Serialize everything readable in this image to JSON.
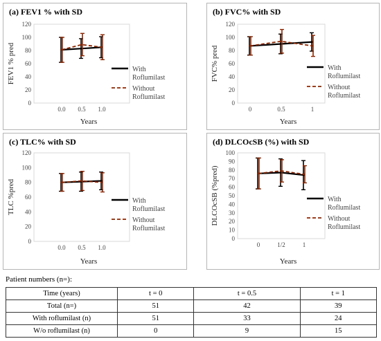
{
  "chart_data": [
    {
      "type": "line",
      "title": "(a) FEV1 % with SD",
      "xlabel": "Years",
      "ylabel": "FEV1 % pred",
      "x_tick_labels": [
        "0.0",
        "0.5",
        "1.0"
      ],
      "ylim": [
        0,
        120
      ],
      "y_ticks": [
        "0",
        "20",
        "40",
        "60",
        "80",
        "100",
        "120"
      ],
      "series": [
        {
          "name": "With Roflumilast",
          "color": "#000000",
          "dashed": false,
          "values": [
            81,
            83,
            85
          ],
          "sd": [
            19,
            15,
            16
          ]
        },
        {
          "name": "Without Roflumilast",
          "color": "#8b2500",
          "dashed": true,
          "values": [
            81,
            89,
            85
          ],
          "sd": [
            19,
            17,
            19
          ]
        }
      ]
    },
    {
      "type": "line",
      "title": "(b) FVC% with SD",
      "xlabel": "Years",
      "ylabel": "FVC% pred",
      "x_tick_labels": [
        "0",
        "0.5",
        "1"
      ],
      "ylim": [
        0,
        120
      ],
      "y_ticks": [
        "0",
        "20",
        "40",
        "60",
        "80",
        "100",
        "120"
      ],
      "series": [
        {
          "name": "With Roflumilast",
          "color": "#000000",
          "dashed": false,
          "values": [
            87,
            90,
            93
          ],
          "sd": [
            14,
            15,
            14
          ]
        },
        {
          "name": "Without Roflumilast",
          "color": "#8b2500",
          "dashed": true,
          "values": [
            87,
            94,
            87
          ],
          "sd": [
            14,
            18,
            16
          ]
        }
      ]
    },
    {
      "type": "line",
      "title": "(c) TLC% with SD",
      "xlabel": "Years",
      "ylabel": "TLC %pred",
      "x_tick_labels": [
        "0.0",
        "0.5",
        "1.0"
      ],
      "ylim": [
        0,
        120
      ],
      "y_ticks": [
        "0",
        "20",
        "40",
        "60",
        "80",
        "100",
        "120"
      ],
      "series": [
        {
          "name": "With Roflumilast",
          "color": "#000000",
          "dashed": false,
          "values": [
            80,
            81,
            82
          ],
          "sd": [
            12,
            13,
            12
          ]
        },
        {
          "name": "Without Roflumilast",
          "color": "#8b2500",
          "dashed": true,
          "values": [
            80,
            82,
            80
          ],
          "sd": [
            12,
            13,
            13
          ]
        }
      ]
    },
    {
      "type": "line",
      "title": "(d) DLCOcSB (%) with SD",
      "xlabel": "Years",
      "ylabel": "DLCOcSB (%pred)",
      "x_tick_labels": [
        "0",
        "1/2",
        "1"
      ],
      "ylim": [
        0,
        100
      ],
      "y_ticks": [
        "0",
        "10",
        "20",
        "30",
        "40",
        "50",
        "60",
        "70",
        "80",
        "90",
        "100"
      ],
      "series": [
        {
          "name": "With Roflumilast",
          "color": "#000000",
          "dashed": false,
          "values": [
            76,
            77,
            74
          ],
          "sd": [
            18,
            16,
            17
          ]
        },
        {
          "name": "Without Roflumilast",
          "color": "#8b2500",
          "dashed": true,
          "values": [
            76,
            79,
            75
          ],
          "sd": [
            18,
            13,
            10
          ]
        }
      ]
    }
  ],
  "patient_numbers": {
    "caption": "Patient numbers (n=):",
    "headers": [
      "Time (years)",
      "t = 0",
      "t = 0.5",
      "t = 1"
    ],
    "rows": [
      [
        "Total (n=)",
        "51",
        "42",
        "39"
      ],
      [
        "With roflumilast (n)",
        "51",
        "33",
        "24"
      ],
      [
        "W/o roflumilast (n)",
        "0",
        "9",
        "15"
      ]
    ]
  }
}
